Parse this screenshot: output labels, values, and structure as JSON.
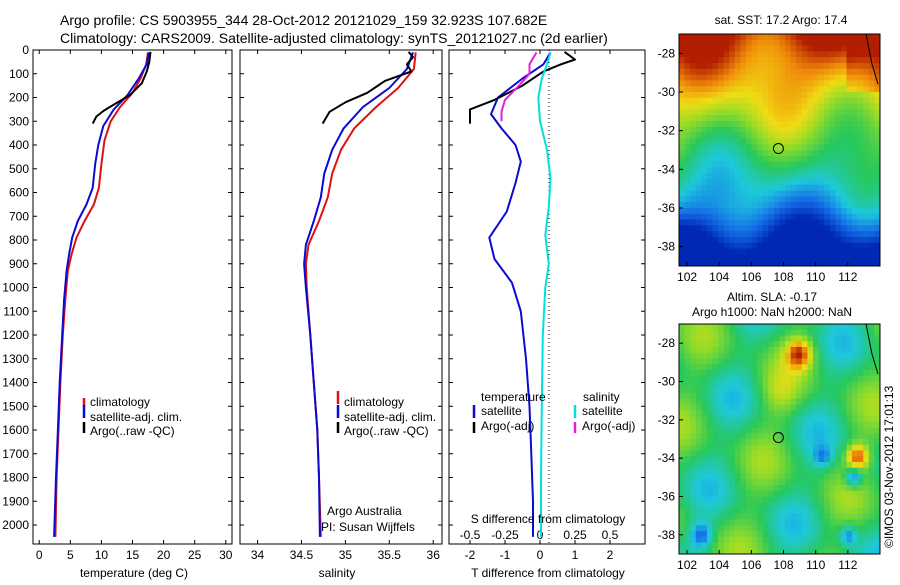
{
  "header": {
    "line1": "Argo profile: CS 5903955_344 28-Oct-2012 20121029_159 32.923S 107.682E",
    "line2": "Climatology: CARS2009. Satellite-adjusted climatology: synTS_20121027.nc (2d earlier)"
  },
  "colors": {
    "climatology": "#e01010",
    "satellite": "#0a0ad0",
    "argo": "#000000",
    "sal_sat": "#00e0e0",
    "sal_argo": "#e020e0"
  },
  "chart_data": [
    {
      "id": "temperature",
      "type": "line",
      "xlabel": "temperature (deg C)",
      "ylabel": "",
      "xlim": [
        -1,
        31
      ],
      "ylim": [
        2080,
        0
      ],
      "y_inverted": true,
      "xticks": [
        0,
        5,
        10,
        15,
        20,
        25,
        30
      ],
      "yticks": [
        0,
        100,
        200,
        300,
        400,
        500,
        600,
        700,
        800,
        900,
        1000,
        1100,
        1200,
        1300,
        1400,
        1500,
        1600,
        1700,
        1800,
        1900,
        2000
      ],
      "legend": [
        "climatology",
        "satellite-adj. clim.",
        "Argo(..raw -QC)"
      ],
      "series": [
        {
          "name": "climatology",
          "color": "#e01010",
          "points": [
            [
              17.5,
              10
            ],
            [
              17.2,
              60
            ],
            [
              16.3,
              120
            ],
            [
              15,
              180
            ],
            [
              13,
              240
            ],
            [
              11.5,
              300
            ],
            [
              10.5,
              380
            ],
            [
              10,
              480
            ],
            [
              9.6,
              580
            ],
            [
              8.8,
              650
            ],
            [
              7.3,
              720
            ],
            [
              6,
              790
            ],
            [
              5.2,
              860
            ],
            [
              4.6,
              930
            ],
            [
              4.2,
              1050
            ],
            [
              3.8,
              1200
            ],
            [
              3.4,
              1400
            ],
            [
              3.1,
              1600
            ],
            [
              2.8,
              1800
            ],
            [
              2.6,
              2050
            ]
          ]
        },
        {
          "name": "satellite-adj. clim.",
          "color": "#0a0ad0",
          "points": [
            [
              17.6,
              10
            ],
            [
              17.3,
              60
            ],
            [
              16,
              120
            ],
            [
              14.2,
              190
            ],
            [
              12,
              250
            ],
            [
              10.3,
              320
            ],
            [
              9.5,
              400
            ],
            [
              9,
              480
            ],
            [
              8.6,
              580
            ],
            [
              7.6,
              650
            ],
            [
              6.2,
              720
            ],
            [
              5.3,
              790
            ],
            [
              4.8,
              860
            ],
            [
              4.4,
              930
            ],
            [
              4,
              1050
            ],
            [
              3.7,
              1200
            ],
            [
              3.3,
              1400
            ],
            [
              3,
              1600
            ],
            [
              2.7,
              1800
            ],
            [
              2.4,
              2050
            ]
          ]
        },
        {
          "name": "Argo(..raw -QC)",
          "color": "#000000",
          "points": [
            [
              17.9,
              8
            ],
            [
              17.7,
              50
            ],
            [
              17.3,
              90
            ],
            [
              16.5,
              140
            ],
            [
              14.6,
              190
            ],
            [
              12,
              230
            ],
            [
              10.4,
              255
            ],
            [
              9.2,
              280
            ],
            [
              8.6,
              310
            ]
          ]
        }
      ]
    },
    {
      "id": "salinity",
      "type": "line",
      "xlabel": "salinity",
      "ylabel": "",
      "xlim": [
        33.8,
        36.1
      ],
      "ylim": [
        2080,
        0
      ],
      "y_inverted": true,
      "xticks": [
        34,
        34.5,
        35,
        35.5,
        36
      ],
      "legend": [
        "climatology",
        "satellite-adj. clim.",
        "Argo(..raw -QC)"
      ],
      "annotation": [
        "Argo Australia",
        "PI: Susan Wijffels"
      ],
      "series": [
        {
          "name": "climatology",
          "color": "#e01010",
          "points": [
            [
              35.8,
              10
            ],
            [
              35.78,
              80
            ],
            [
              35.6,
              160
            ],
            [
              35.35,
              240
            ],
            [
              35.1,
              330
            ],
            [
              34.95,
              420
            ],
            [
              34.85,
              520
            ],
            [
              34.8,
              620
            ],
            [
              34.7,
              720
            ],
            [
              34.58,
              820
            ],
            [
              34.55,
              900
            ],
            [
              34.56,
              1000
            ],
            [
              34.6,
              1200
            ],
            [
              34.64,
              1400
            ],
            [
              34.68,
              1600
            ],
            [
              34.7,
              1800
            ],
            [
              34.72,
              2050
            ]
          ]
        },
        {
          "name": "satellite-adj. clim.",
          "color": "#0a0ad0",
          "points": [
            [
              35.77,
              10
            ],
            [
              35.7,
              80
            ],
            [
              35.5,
              160
            ],
            [
              35.2,
              240
            ],
            [
              34.98,
              330
            ],
            [
              34.85,
              420
            ],
            [
              34.76,
              520
            ],
            [
              34.72,
              620
            ],
            [
              34.64,
              720
            ],
            [
              34.55,
              820
            ],
            [
              34.53,
              900
            ],
            [
              34.55,
              1000
            ],
            [
              34.6,
              1200
            ],
            [
              34.64,
              1400
            ],
            [
              34.68,
              1600
            ],
            [
              34.7,
              1800
            ],
            [
              34.71,
              2050
            ]
          ]
        },
        {
          "name": "Argo(..raw -QC)",
          "color": "#000000",
          "points": [
            [
              35.72,
              8
            ],
            [
              35.77,
              30
            ],
            [
              35.7,
              60
            ],
            [
              35.75,
              90
            ],
            [
              35.45,
              130
            ],
            [
              35.25,
              180
            ],
            [
              35.0,
              220
            ],
            [
              34.82,
              260
            ],
            [
              34.74,
              310
            ]
          ]
        }
      ]
    },
    {
      "id": "difference",
      "type": "line",
      "xlabel": "T difference from climatology",
      "xlabel_top": "S difference from climatology",
      "xlim": [
        -2.6,
        3.0
      ],
      "ylim": [
        2080,
        0
      ],
      "y_inverted": true,
      "xticks": [
        -2,
        -1,
        0,
        1,
        2
      ],
      "xticks_s": [
        "-0.5",
        "-0.25",
        "0",
        "0.25",
        "0.5"
      ],
      "legend_temperature": [
        "temperature",
        "satellite",
        "Argo(-adj)"
      ],
      "legend_salinity": [
        "salinity",
        "satellite",
        "Argo(-adj)"
      ],
      "series": [
        {
          "name": "T satellite",
          "color": "#0a0ad0",
          "points": [
            [
              0.3,
              10
            ],
            [
              0.1,
              60
            ],
            [
              -0.5,
              120
            ],
            [
              -1.2,
              200
            ],
            [
              -1.4,
              270
            ],
            [
              -1.1,
              330
            ],
            [
              -0.7,
              400
            ],
            [
              -0.55,
              470
            ],
            [
              -0.7,
              560
            ],
            [
              -0.95,
              680
            ],
            [
              -1.45,
              790
            ],
            [
              -1.3,
              880
            ],
            [
              -0.8,
              980
            ],
            [
              -0.55,
              1100
            ],
            [
              -0.4,
              1300
            ],
            [
              -0.3,
              1500
            ],
            [
              -0.25,
              1700
            ],
            [
              -0.2,
              1900
            ],
            [
              -0.2,
              2050
            ]
          ]
        },
        {
          "name": "T Argo(-adj)",
          "color": "#000000",
          "points": [
            [
              0.7,
              8
            ],
            [
              1.0,
              40
            ],
            [
              0.6,
              60
            ],
            [
              0.1,
              90
            ],
            [
              -0.5,
              150
            ],
            [
              -1.3,
              210
            ],
            [
              -2.0,
              250
            ],
            [
              -2.0,
              310
            ]
          ]
        },
        {
          "name": "S satellite",
          "color": "#00e0e0",
          "points": [
            [
              0.3,
              10
            ],
            [
              0.2,
              60
            ],
            [
              0.05,
              120
            ],
            [
              -0.05,
              200
            ],
            [
              0.0,
              300
            ],
            [
              0.2,
              420
            ],
            [
              0.3,
              540
            ],
            [
              0.25,
              660
            ],
            [
              0.15,
              780
            ],
            [
              0.25,
              900
            ],
            [
              0.15,
              1000
            ],
            [
              0.08,
              1200
            ],
            [
              0.05,
              1500
            ],
            [
              0.03,
              1800
            ],
            [
              0.03,
              2050
            ]
          ]
        },
        {
          "name": "S Argo(-adj)",
          "color": "#e020e0",
          "points": [
            [
              -0.1,
              10
            ],
            [
              -0.3,
              60
            ],
            [
              -0.3,
              100
            ],
            [
              -0.6,
              150
            ],
            [
              -1.0,
              210
            ],
            [
              -1.1,
              260
            ],
            [
              -1.1,
              300
            ]
          ]
        }
      ]
    },
    {
      "id": "sst_map",
      "type": "heatmap",
      "title": "sat. SST: 17.2 Argo: 17.4",
      "xticks": [
        "102",
        "104",
        "106",
        "108",
        "110",
        "112"
      ],
      "yticks": [
        "-28",
        "-30",
        "-32",
        "-34",
        "-36",
        "-38"
      ],
      "marker": [
        107.682,
        -32.923
      ]
    },
    {
      "id": "sla_map",
      "type": "heatmap",
      "title_line1": "Altim. SLA: -0.17",
      "title_line2": "Argo h1000: NaN h2000: NaN",
      "xticks": [
        "102",
        "104",
        "106",
        "108",
        "110",
        "112"
      ],
      "yticks": [
        "-28",
        "-30",
        "-32",
        "-34",
        "-36",
        "-38"
      ],
      "marker": [
        107.682,
        -32.923
      ]
    }
  ],
  "footer_vertical": "©IMOS 03-Nov-2012 17:01:13"
}
